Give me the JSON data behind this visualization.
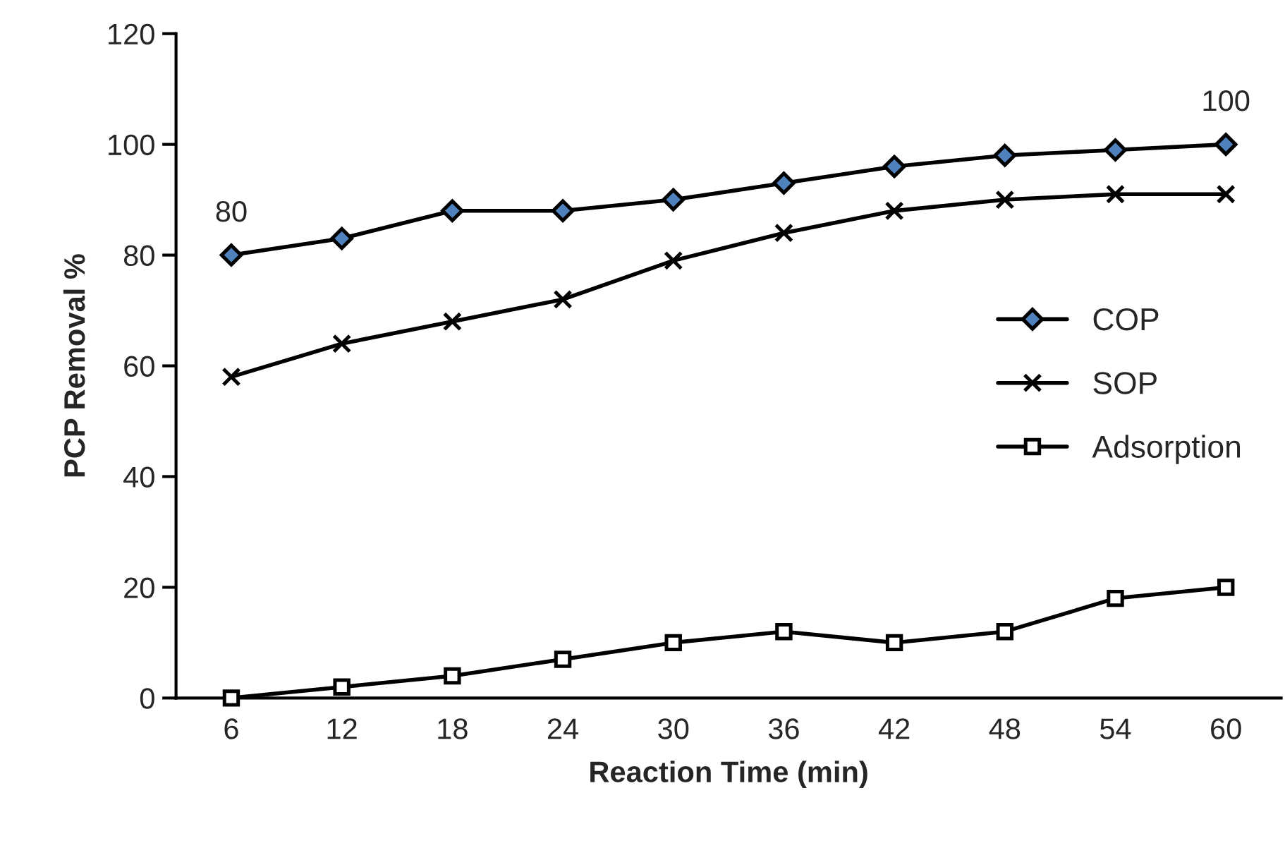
{
  "chart_data": {
    "type": "line",
    "xlabel": "Reaction Time (min)",
    "ylabel": "PCP Removal %",
    "categories": [
      "6",
      "12",
      "18",
      "24",
      "30",
      "36",
      "42",
      "48",
      "54",
      "60"
    ],
    "series": [
      {
        "name": "COP",
        "color": "#4f81bd",
        "marker": "diamond",
        "values": [
          80,
          83,
          88,
          88,
          90,
          93,
          96,
          98,
          99,
          100
        ],
        "value_labels": [
          "80",
          null,
          null,
          null,
          null,
          null,
          null,
          null,
          null,
          "100"
        ]
      },
      {
        "name": "SOP",
        "color": "#000000",
        "marker": "cross",
        "values": [
          58,
          64,
          68,
          72,
          79,
          84,
          88,
          90,
          91,
          91
        ]
      },
      {
        "name": "Adsorption",
        "color": "#ffffff",
        "marker": "square",
        "values": [
          0,
          2,
          4,
          7,
          10,
          12,
          10,
          12,
          18,
          20
        ]
      }
    ],
    "ylim": [
      0,
      120
    ],
    "yticks": [
      0,
      20,
      40,
      60,
      80,
      100,
      120
    ],
    "grid": false,
    "legend": "right",
    "line_style": "solid"
  }
}
